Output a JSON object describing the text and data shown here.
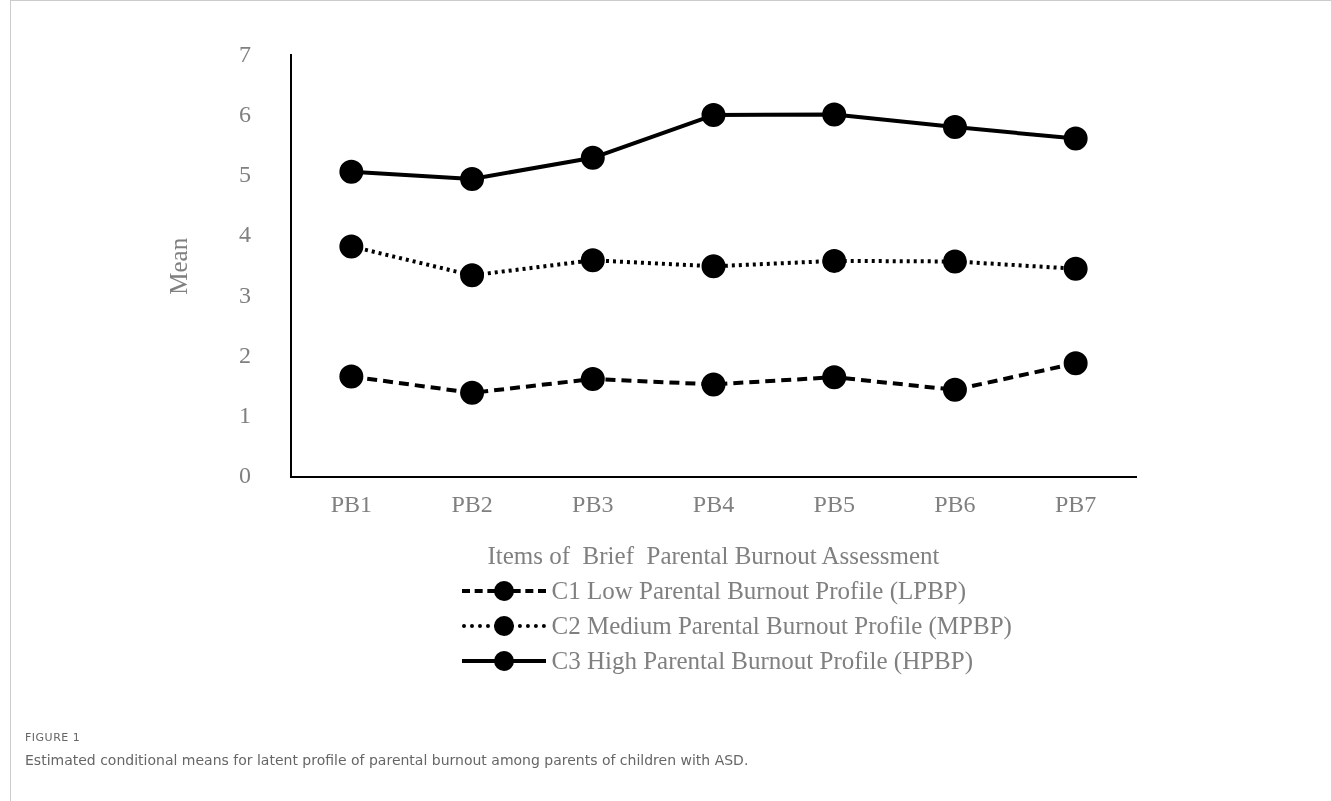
{
  "chart_data": {
    "type": "line",
    "xlabel": "Items of  Brief  Parental Burnout Assessment",
    "ylabel": "Mean",
    "categories": [
      "PB1",
      "PB2",
      "PB3",
      "PB4",
      "PB5",
      "PB6",
      "PB7"
    ],
    "series": [
      {
        "name": "C1 Low Parental Burnout Profile (LPBP)",
        "color": "#000000",
        "line_style": "dashed",
        "values": [
          1.67,
          1.4,
          1.63,
          1.54,
          1.66,
          1.45,
          1.89
        ]
      },
      {
        "name": "C2 Medium Parental Burnout Profile (MPBP)",
        "color": "#000000",
        "line_style": "dotted",
        "values": [
          3.83,
          3.35,
          3.6,
          3.5,
          3.59,
          3.58,
          3.46
        ]
      },
      {
        "name": "C3 High Parental Burnout Profile (HPBP)",
        "color": "#000000",
        "line_style": "solid",
        "values": [
          5.07,
          4.95,
          5.3,
          6.01,
          6.02,
          5.81,
          5.62
        ]
      }
    ],
    "ylim": [
      0,
      7
    ],
    "yticks": [
      0,
      1,
      2,
      3,
      4,
      5,
      6,
      7
    ],
    "grid": false,
    "legend": "bottom",
    "marker": "circle",
    "annotations": [
      "FIGURE 1",
      "Estimated conditional means for latent profile of parental burnout among parents of children with ASD."
    ]
  }
}
